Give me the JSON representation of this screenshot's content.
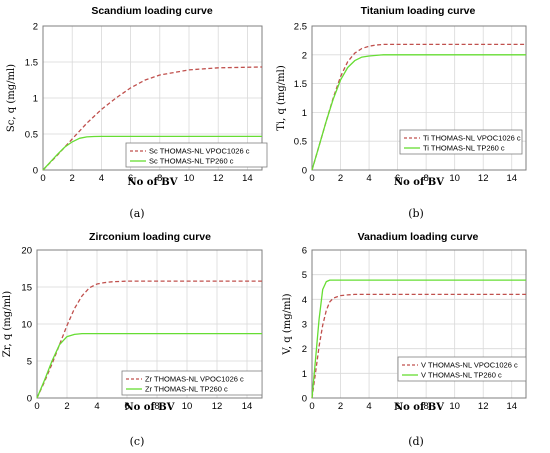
{
  "chart_data": [
    {
      "type": "line",
      "caption": "(a)",
      "title": "Scandium loading curve",
      "xlabel": "No of BV",
      "ylabel": "Sc, q (mg/ml)",
      "xlim": [
        0,
        15
      ],
      "ylim": [
        0,
        2
      ],
      "xticks": [
        0,
        2,
        4,
        6,
        8,
        10,
        12,
        14
      ],
      "yticks": [
        0,
        0.5,
        1,
        1.5,
        2
      ],
      "ytick_labels": [
        "0",
        "0.5",
        "1",
        "1.5",
        "2"
      ],
      "grid": true,
      "legend_position": "lower-middle",
      "series": [
        {
          "name": "Sc THOMAS-NL VPOC1026 c",
          "color": "#c0504d",
          "style": "dashed",
          "x": [
            0,
            1,
            2,
            3,
            4,
            5,
            6,
            7,
            8,
            10,
            12,
            15
          ],
          "y": [
            0,
            0.21,
            0.43,
            0.65,
            0.84,
            1.0,
            1.14,
            1.25,
            1.32,
            1.39,
            1.42,
            1.43
          ]
        },
        {
          "name": "Sc THOMAS-NL TP260 c",
          "color": "#66dd33",
          "style": "solid",
          "x": [
            0,
            0.5,
            1,
            1.5,
            2,
            2.5,
            3,
            3.5,
            4,
            5,
            15
          ],
          "y": [
            0,
            0.11,
            0.22,
            0.32,
            0.39,
            0.44,
            0.46,
            0.465,
            0.466,
            0.466,
            0.466
          ]
        }
      ]
    },
    {
      "type": "line",
      "caption": "(b)",
      "title": "Titanium loading curve",
      "xlabel": "No of BV",
      "ylabel": "Ti, q (mg/ml)",
      "xlim": [
        0,
        15
      ],
      "ylim": [
        0,
        2.5
      ],
      "xticks": [
        0,
        2,
        4,
        6,
        8,
        10,
        12,
        14
      ],
      "yticks": [
        0,
        0.5,
        1,
        1.5,
        2,
        2.5
      ],
      "ytick_labels": [
        "0",
        "0.5",
        "1",
        "1.5",
        "2",
        "2.5"
      ],
      "grid": true,
      "legend_position": "middle-right",
      "series": [
        {
          "name": "Ti THOMAS-NL VPOC1026 c",
          "color": "#c0504d",
          "style": "dashed",
          "x": [
            0,
            0.5,
            1,
            1.5,
            2,
            2.5,
            3,
            3.5,
            4,
            4.5,
            5,
            6,
            8,
            15
          ],
          "y": [
            0,
            0.42,
            0.85,
            1.26,
            1.62,
            1.88,
            2.03,
            2.11,
            2.15,
            2.17,
            2.18,
            2.18,
            2.18,
            2.18
          ]
        },
        {
          "name": "Ti THOMAS-NL TP260 c",
          "color": "#66dd33",
          "style": "solid",
          "x": [
            0,
            0.5,
            1,
            1.5,
            2,
            2.5,
            3,
            3.5,
            4,
            4.5,
            5,
            6,
            15
          ],
          "y": [
            0,
            0.42,
            0.85,
            1.24,
            1.56,
            1.78,
            1.9,
            1.96,
            1.98,
            1.99,
            2.0,
            2.0,
            2.0
          ]
        }
      ]
    },
    {
      "type": "line",
      "caption": "(c)",
      "title": "Zirconium loading curve",
      "xlabel": "No of BV",
      "ylabel": "Zr, q (mg/ml)",
      "xlim": [
        0,
        15
      ],
      "ylim": [
        0,
        20
      ],
      "xticks": [
        0,
        2,
        4,
        6,
        8,
        10,
        12,
        14
      ],
      "yticks": [
        0,
        5,
        10,
        15,
        20
      ],
      "ytick_labels": [
        "0",
        "5",
        "10",
        "15",
        "20"
      ],
      "grid": true,
      "legend_position": "lower-middle",
      "series": [
        {
          "name": "Zr THOMAS-NL VPOC1026 c",
          "color": "#c0504d",
          "style": "dashed",
          "x": [
            0,
            0.5,
            1,
            1.5,
            2,
            2.5,
            3,
            3.5,
            4,
            4.5,
            5,
            6,
            8,
            15
          ],
          "y": [
            0,
            2.2,
            4.6,
            7.2,
            9.8,
            12.1,
            13.8,
            14.9,
            15.4,
            15.6,
            15.7,
            15.8,
            15.8,
            15.8
          ]
        },
        {
          "name": "Zr THOMAS-NL TP260 c",
          "color": "#66dd33",
          "style": "solid",
          "x": [
            0,
            0.5,
            1,
            1.5,
            2,
            2.5,
            3,
            4,
            15
          ],
          "y": [
            0,
            2.4,
            5.0,
            7.2,
            8.3,
            8.6,
            8.7,
            8.7,
            8.7
          ]
        }
      ]
    },
    {
      "type": "line",
      "caption": "(d)",
      "title": "Vanadium loading curve",
      "xlabel": "No of BV",
      "ylabel": "V, q (mg/ml)",
      "xlim": [
        0,
        15
      ],
      "ylim": [
        0,
        6
      ],
      "xticks": [
        0,
        2,
        4,
        6,
        8,
        10,
        12,
        14
      ],
      "yticks": [
        0,
        1,
        2,
        3,
        4,
        5,
        6
      ],
      "ytick_labels": [
        "0",
        "1",
        "2",
        "3",
        "4",
        "5",
        "6"
      ],
      "grid": true,
      "legend_position": "lower-middle",
      "series": [
        {
          "name": "V THOMAS-NL VPOC1026 c",
          "color": "#c0504d",
          "style": "dashed",
          "x": [
            0,
            0.25,
            0.5,
            0.75,
            1,
            1.25,
            1.5,
            2,
            2.5,
            3,
            15
          ],
          "y": [
            0,
            1.05,
            2.1,
            2.95,
            3.55,
            3.9,
            4.05,
            4.15,
            4.18,
            4.2,
            4.2
          ]
        },
        {
          "name": "V THOMAS-NL TP260 c",
          "color": "#66dd33",
          "style": "solid",
          "x": [
            0,
            0.25,
            0.5,
            0.75,
            1,
            1.25,
            1.5,
            2,
            15
          ],
          "y": [
            0,
            1.6,
            3.2,
            4.4,
            4.72,
            4.78,
            4.78,
            4.78,
            4.78
          ]
        }
      ]
    }
  ]
}
